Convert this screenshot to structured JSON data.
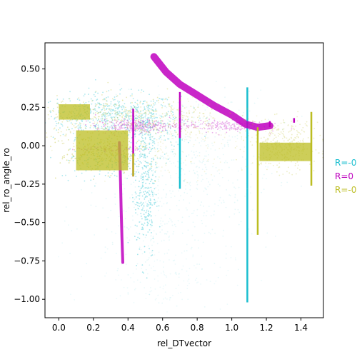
{
  "chart_data": {
    "type": "scatter",
    "title": "",
    "xlabel": "rel_DTvector",
    "ylabel": "rel_ro_angle_ro",
    "xlim": [
      -0.08,
      1.53
    ],
    "ylim": [
      -1.12,
      0.67
    ],
    "x_ticks": [
      0.0,
      0.2,
      0.4,
      0.6,
      0.8,
      1.0,
      1.2,
      1.4
    ],
    "x_tick_labels": [
      "0.0",
      "0.2",
      "0.4",
      "0.6",
      "0.8",
      "1.0",
      "1.2",
      "1.4"
    ],
    "y_ticks": [
      -1.0,
      -0.75,
      -0.5,
      -0.25,
      0.0,
      0.25,
      0.5
    ],
    "y_tick_labels": [
      "−1.00",
      "−0.75",
      "−0.50",
      "−0.25",
      "0.00",
      "0.25",
      "0.50"
    ],
    "grid": false,
    "legend_position": "right",
    "series": [
      {
        "name": "R=-0",
        "color": "#17becf",
        "clusters": [
          {
            "x": 0.3,
            "y": 0.2,
            "sx": 0.2,
            "sy": 0.07,
            "n": 500,
            "alpha": 0.35
          },
          {
            "x": 0.5,
            "y": 0.1,
            "sx": 0.1,
            "sy": 0.1,
            "n": 200,
            "alpha": 0.35
          },
          {
            "x": 0.75,
            "y": -0.05,
            "sx": 0.25,
            "sy": 0.2,
            "n": 400,
            "alpha": 0.1
          },
          {
            "x": 0.6,
            "y": -0.5,
            "sx": 0.22,
            "sy": 0.22,
            "n": 300,
            "alpha": 0.1
          },
          {
            "x": 0.6,
            "y": -0.85,
            "sx": 0.2,
            "sy": 0.1,
            "n": 120,
            "alpha": 0.08
          },
          {
            "x": 0.5,
            "y": -0.3,
            "sx": 0.03,
            "sy": 0.22,
            "n": 250,
            "alpha": 0.4
          },
          {
            "x": 0.3,
            "y": -0.1,
            "sx": 0.15,
            "sy": 0.06,
            "n": 150,
            "alpha": 0.35
          }
        ],
        "lines": [
          {
            "x": 0.7,
            "y0": -0.28,
            "y1": 0.25
          },
          {
            "x": 1.09,
            "y0": -0.28,
            "y1": 0.38
          },
          {
            "x": 1.09,
            "y0": -1.02,
            "y1": -0.28
          }
        ]
      },
      {
        "name": "R=0",
        "color": "#bf00bf",
        "clusters": [
          {
            "x": 0.45,
            "y": 0.13,
            "sx": 0.12,
            "sy": 0.02,
            "n": 250,
            "alpha": 0.35
          },
          {
            "x": 0.95,
            "y": 0.13,
            "sx": 0.12,
            "sy": 0.02,
            "n": 200,
            "alpha": 0.3
          },
          {
            "x": 0.3,
            "y": -0.02,
            "sx": 0.1,
            "sy": 0.01,
            "n": 60,
            "alpha": 0.3
          }
        ],
        "curves": [
          {
            "points": [
              [
                0.55,
                0.58
              ],
              [
                0.62,
                0.48
              ],
              [
                0.7,
                0.4
              ],
              [
                0.8,
                0.33
              ],
              [
                0.9,
                0.26
              ],
              [
                1.0,
                0.2
              ],
              [
                1.08,
                0.14
              ],
              [
                1.15,
                0.12
              ],
              [
                1.22,
                0.13
              ]
            ],
            "width": 10
          },
          {
            "points": [
              [
                0.35,
                0.02
              ],
              [
                0.355,
                -0.15
              ],
              [
                0.36,
                -0.4
              ],
              [
                0.365,
                -0.6
              ],
              [
                0.37,
                -0.76
              ]
            ],
            "width": 4
          }
        ],
        "lines": [
          {
            "x": 0.43,
            "y0": -0.2,
            "y1": 0.24
          },
          {
            "x": 1.22,
            "y0": 0.12,
            "y1": 0.16
          },
          {
            "x": 1.36,
            "y0": 0.15,
            "y1": 0.18
          },
          {
            "x": 0.7,
            "y0": 0.05,
            "y1": 0.35
          }
        ]
      },
      {
        "name": "R=-0",
        "color": "#bcbd22",
        "clusters": [
          {
            "x": 0.4,
            "y": 0.18,
            "sx": 0.28,
            "sy": 0.07,
            "n": 450,
            "alpha": 0.3
          },
          {
            "x": 1.3,
            "y": 0.0,
            "sx": 0.1,
            "sy": 0.08,
            "n": 350,
            "alpha": 0.25
          },
          {
            "x": 0.25,
            "y": -0.05,
            "sx": 0.12,
            "sy": 0.06,
            "n": 250,
            "alpha": 0.4
          },
          {
            "x": 0.6,
            "y": 0.05,
            "sx": 0.25,
            "sy": 0.12,
            "n": 250,
            "alpha": 0.15
          }
        ],
        "bands": [
          {
            "x0": 0.0,
            "x1": 0.18,
            "y0": 0.17,
            "y1": 0.27
          },
          {
            "x0": 0.1,
            "x1": 0.4,
            "y0": -0.16,
            "y1": 0.1
          },
          {
            "x0": 1.16,
            "x1": 1.46,
            "y0": -0.1,
            "y1": 0.02
          }
        ],
        "lines": [
          {
            "x": 1.15,
            "y0": -0.58,
            "y1": 0.12
          },
          {
            "x": 1.46,
            "y0": -0.26,
            "y1": 0.22
          },
          {
            "x": 0.43,
            "y0": -0.2,
            "y1": -0.05
          }
        ]
      }
    ]
  }
}
